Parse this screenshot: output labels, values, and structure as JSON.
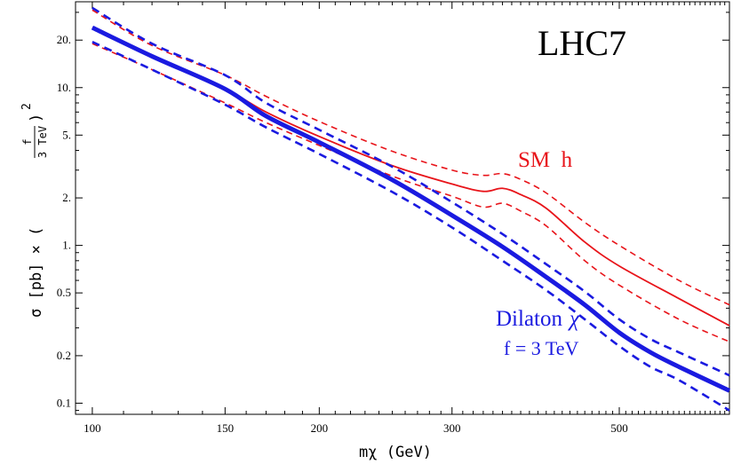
{
  "chart_data": {
    "type": "line",
    "title": "",
    "xlabel": "mχ (GeV)",
    "ylabel": {
      "prefix": "σ [pb] × (",
      "frac_num": "f",
      "frac_den": "3 TeV",
      "suffix": ")",
      "power": "2"
    },
    "xscale": "log",
    "yscale": "log",
    "xlim": [
      95,
      700
    ],
    "ylim": [
      0.085,
      35
    ],
    "x_ticks": [
      100,
      150,
      200,
      300,
      500
    ],
    "x_tick_labels": [
      "100",
      "150",
      "200",
      "300",
      "500"
    ],
    "y_ticks": [
      20,
      10,
      5,
      2,
      1,
      0.5,
      0.2,
      0.1
    ],
    "y_tick_labels": [
      "20.",
      "10.",
      "5.",
      "2.",
      "1.",
      "0.5",
      "0.2",
      "0.1"
    ],
    "grid": false,
    "colors": {
      "sm": "#e8141a",
      "dilaton": "#1a1ae0"
    },
    "annotations": {
      "collider": "LHC7",
      "sm": "SM  h",
      "dilaton": "Dilaton",
      "dilaton_symbol": "χ",
      "dilaton_param": "f = 3 TeV"
    },
    "series": [
      {
        "group": "sm",
        "style": "central",
        "x": [
          100,
          120,
          150,
          170,
          200,
          250,
          300,
          330,
          350,
          370,
          400,
          450,
          500,
          600,
          700
        ],
        "y": [
          24,
          15.5,
          9.8,
          7.0,
          4.9,
          3.2,
          2.45,
          2.2,
          2.3,
          2.1,
          1.72,
          1.05,
          0.74,
          0.46,
          0.31
        ]
      },
      {
        "group": "sm",
        "style": "upper",
        "x": [
          100,
          120,
          150,
          170,
          200,
          250,
          300,
          330,
          350,
          370,
          400,
          450,
          500,
          600,
          700
        ],
        "y": [
          31,
          18.5,
          12,
          8.8,
          6.1,
          3.95,
          3.0,
          2.78,
          2.85,
          2.62,
          2.15,
          1.4,
          1.0,
          0.6,
          0.42
        ]
      },
      {
        "group": "sm",
        "style": "lower",
        "x": [
          100,
          120,
          150,
          170,
          200,
          250,
          300,
          330,
          350,
          370,
          400,
          450,
          500,
          600,
          700
        ],
        "y": [
          19,
          13,
          8.0,
          6.0,
          4.3,
          2.75,
          2.05,
          1.75,
          1.85,
          1.65,
          1.33,
          0.8,
          0.56,
          0.34,
          0.245
        ]
      },
      {
        "group": "dilaton",
        "style": "central",
        "x": [
          100,
          120,
          150,
          170,
          200,
          250,
          300,
          350,
          400,
          450,
          500,
          550,
          600,
          700
        ],
        "y": [
          24,
          15.8,
          9.8,
          6.6,
          4.5,
          2.6,
          1.55,
          0.98,
          0.63,
          0.42,
          0.28,
          0.21,
          0.17,
          0.12
        ]
      },
      {
        "group": "dilaton",
        "style": "upper",
        "x": [
          100,
          120,
          150,
          170,
          200,
          250,
          300,
          350,
          400,
          450,
          500,
          550,
          600,
          700
        ],
        "y": [
          32,
          19,
          12,
          8.0,
          5.4,
          3.15,
          1.88,
          1.18,
          0.76,
          0.51,
          0.34,
          0.255,
          0.21,
          0.15
        ]
      },
      {
        "group": "dilaton",
        "style": "lower",
        "x": [
          100,
          120,
          150,
          170,
          200,
          250,
          300,
          350,
          400,
          450,
          500,
          550,
          600,
          700
        ],
        "y": [
          19.5,
          13,
          7.8,
          5.6,
          3.8,
          2.18,
          1.3,
          0.8,
          0.52,
          0.34,
          0.23,
          0.17,
          0.14,
          0.09
        ]
      }
    ]
  }
}
